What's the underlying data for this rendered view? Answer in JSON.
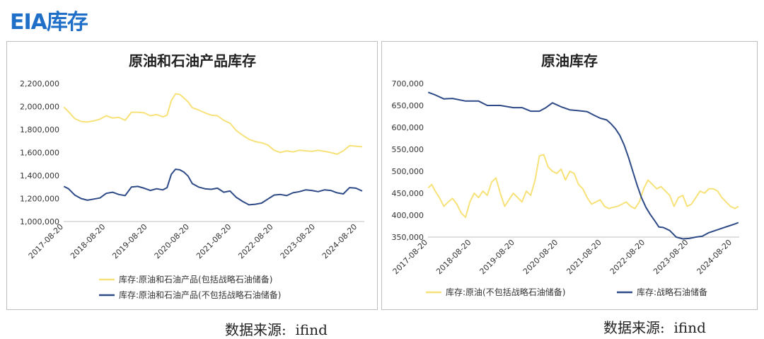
{
  "page": {
    "title": "EIA库存"
  },
  "source": {
    "left": "数据来源:  ifind",
    "right": "数据来源:  ifind"
  },
  "charts": [
    {
      "title": "原油和石油产品库存",
      "type": "line",
      "ylim": [
        1000000,
        2200000
      ],
      "yticks": [
        1000000,
        1200000,
        1400000,
        1600000,
        1800000,
        2000000,
        2200000
      ],
      "ytick_labels": [
        "1,000,000",
        "1,200,000",
        "1,400,000",
        "1,600,000",
        "1,800,000",
        "2,000,000",
        "2,200,000"
      ],
      "xlim": [
        2017.6356,
        2024.8
      ]
    },
    {
      "title": "原油库存",
      "type": "line",
      "ylim": [
        350000,
        700000
      ],
      "yticks": [
        350000,
        400000,
        450000,
        500000,
        550000,
        600000,
        650000,
        700000
      ],
      "ytick_labels": [
        "350,000",
        "400,000",
        "450,000",
        "500,000",
        "550,000",
        "600,000",
        "650,000",
        "700,000"
      ],
      "xlim": [
        2017.6356,
        2024.8
      ]
    }
  ],
  "chart_data": [
    {
      "type": "line",
      "title": "原油和石油产品库存",
      "xlabel": "",
      "ylabel": "",
      "x_tick_labels": [
        "2017-08-20",
        "2018-08-20",
        "2019-08-20",
        "2020-08-20",
        "2021-08-20",
        "2022-08-20",
        "2023-08-20",
        "2024-08-20"
      ],
      "x_tick_values": [
        2017.6356,
        2018.6356,
        2019.6356,
        2020.6356,
        2021.6356,
        2022.6356,
        2023.6356,
        2024.6356
      ],
      "ylim": [
        1000000,
        2200000
      ],
      "legend_position": "bottom",
      "series": [
        {
          "name": "库存:原油和石油产品(包括战略石油储备)",
          "color": "#f7e27a",
          "x": [
            2017.64,
            2017.75,
            2017.9,
            2018.05,
            2018.2,
            2018.35,
            2018.5,
            2018.65,
            2018.8,
            2018.95,
            2019.1,
            2019.25,
            2019.4,
            2019.55,
            2019.7,
            2019.85,
            2020.0,
            2020.1,
            2020.2,
            2020.3,
            2020.4,
            2020.5,
            2020.6,
            2020.7,
            2020.85,
            2021.0,
            2021.15,
            2021.3,
            2021.45,
            2021.6,
            2021.75,
            2021.9,
            2022.05,
            2022.2,
            2022.35,
            2022.5,
            2022.65,
            2022.8,
            2022.95,
            2023.1,
            2023.25,
            2023.4,
            2023.55,
            2023.7,
            2023.85,
            2024.0,
            2024.15,
            2024.3,
            2024.45,
            2024.6,
            2024.75
          ],
          "y": [
            1995000,
            1955000,
            1895000,
            1870000,
            1865000,
            1875000,
            1890000,
            1920000,
            1900000,
            1905000,
            1880000,
            1950000,
            1950000,
            1945000,
            1920000,
            1930000,
            1910000,
            1925000,
            2050000,
            2110000,
            2105000,
            2075000,
            2040000,
            1990000,
            1970000,
            1945000,
            1925000,
            1920000,
            1880000,
            1855000,
            1790000,
            1750000,
            1715000,
            1695000,
            1685000,
            1665000,
            1620000,
            1600000,
            1615000,
            1605000,
            1620000,
            1615000,
            1610000,
            1620000,
            1610000,
            1600000,
            1585000,
            1615000,
            1660000,
            1655000,
            1650000
          ]
        },
        {
          "name": "库存:原油和石油产品(不包括战略石油储备)",
          "color": "#2e4a87",
          "x": [
            2017.64,
            2017.75,
            2017.9,
            2018.05,
            2018.2,
            2018.35,
            2018.5,
            2018.65,
            2018.8,
            2018.95,
            2019.1,
            2019.25,
            2019.4,
            2019.55,
            2019.7,
            2019.85,
            2020.0,
            2020.1,
            2020.2,
            2020.3,
            2020.4,
            2020.5,
            2020.6,
            2020.7,
            2020.85,
            2021.0,
            2021.15,
            2021.3,
            2021.45,
            2021.6,
            2021.75,
            2021.9,
            2022.05,
            2022.2,
            2022.35,
            2022.5,
            2022.65,
            2022.8,
            2022.95,
            2023.1,
            2023.25,
            2023.4,
            2023.55,
            2023.7,
            2023.85,
            2024.0,
            2024.15,
            2024.3,
            2024.45,
            2024.6,
            2024.75
          ],
          "y": [
            1305000,
            1285000,
            1230000,
            1200000,
            1185000,
            1195000,
            1205000,
            1245000,
            1255000,
            1235000,
            1225000,
            1300000,
            1305000,
            1290000,
            1270000,
            1285000,
            1275000,
            1295000,
            1410000,
            1455000,
            1450000,
            1430000,
            1395000,
            1330000,
            1300000,
            1285000,
            1280000,
            1290000,
            1255000,
            1265000,
            1210000,
            1175000,
            1145000,
            1150000,
            1160000,
            1195000,
            1230000,
            1235000,
            1225000,
            1250000,
            1260000,
            1275000,
            1270000,
            1260000,
            1275000,
            1270000,
            1250000,
            1240000,
            1295000,
            1290000,
            1265000
          ]
        }
      ]
    },
    {
      "type": "line",
      "title": "原油库存",
      "xlabel": "",
      "ylabel": "",
      "x_tick_labels": [
        "2017-08-20",
        "2018-08-20",
        "2019-08-20",
        "2020-08-20",
        "2021-08-20",
        "2022-08-20",
        "2023-08-20",
        "2024-08-20"
      ],
      "x_tick_values": [
        2017.6356,
        2018.6356,
        2019.6356,
        2020.6356,
        2021.6356,
        2022.6356,
        2023.6356,
        2024.6356
      ],
      "ylim": [
        350000,
        700000
      ],
      "legend_position": "bottom",
      "series": [
        {
          "name": "库存:原油(不包括战略石油储备)",
          "color": "#f7e27a",
          "x": [
            2017.64,
            2017.72,
            2017.8,
            2017.9,
            2018.0,
            2018.1,
            2018.2,
            2018.3,
            2018.4,
            2018.5,
            2018.6,
            2018.7,
            2018.8,
            2018.9,
            2019.0,
            2019.1,
            2019.2,
            2019.3,
            2019.4,
            2019.5,
            2019.6,
            2019.7,
            2019.8,
            2019.9,
            2020.0,
            2020.1,
            2020.2,
            2020.3,
            2020.4,
            2020.5,
            2020.6,
            2020.7,
            2020.8,
            2020.9,
            2021.0,
            2021.1,
            2021.2,
            2021.3,
            2021.4,
            2021.5,
            2021.6,
            2021.7,
            2021.8,
            2021.9,
            2022.0,
            2022.1,
            2022.2,
            2022.3,
            2022.4,
            2022.5,
            2022.6,
            2022.7,
            2022.8,
            2022.9,
            2023.0,
            2023.1,
            2023.2,
            2023.3,
            2023.4,
            2023.5,
            2023.6,
            2023.7,
            2023.8,
            2023.9,
            2024.0,
            2024.1,
            2024.2,
            2024.3,
            2024.4,
            2024.5,
            2024.6,
            2024.7,
            2024.78
          ],
          "y": [
            462000,
            470000,
            455000,
            440000,
            420000,
            430000,
            438000,
            425000,
            405000,
            395000,
            430000,
            450000,
            440000,
            455000,
            445000,
            475000,
            485000,
            450000,
            420000,
            435000,
            450000,
            440000,
            430000,
            455000,
            445000,
            480000,
            535000,
            538000,
            510000,
            500000,
            495000,
            505000,
            480000,
            500000,
            495000,
            470000,
            460000,
            440000,
            425000,
            430000,
            435000,
            420000,
            415000,
            418000,
            420000,
            425000,
            430000,
            420000,
            415000,
            430000,
            460000,
            480000,
            470000,
            460000,
            465000,
            455000,
            445000,
            420000,
            440000,
            445000,
            420000,
            425000,
            440000,
            455000,
            450000,
            460000,
            460000,
            455000,
            440000,
            430000,
            420000,
            415000,
            420000
          ]
        },
        {
          "name": "库存:战略石油储备",
          "color": "#2e4a87",
          "x": [
            2017.64,
            2017.8,
            2018.0,
            2018.2,
            2018.5,
            2018.8,
            2019.0,
            2019.3,
            2019.6,
            2019.8,
            2020.0,
            2020.2,
            2020.35,
            2020.5,
            2020.7,
            2020.9,
            2021.1,
            2021.3,
            2021.45,
            2021.6,
            2021.75,
            2021.85,
            2021.95,
            2022.05,
            2022.15,
            2022.25,
            2022.35,
            2022.45,
            2022.55,
            2022.65,
            2022.75,
            2022.85,
            2022.95,
            2023.05,
            2023.2,
            2023.35,
            2023.5,
            2023.65,
            2023.8,
            2023.95,
            2024.1,
            2024.25,
            2024.4,
            2024.55,
            2024.7,
            2024.78
          ],
          "y": [
            680000,
            674000,
            665000,
            666000,
            660000,
            660000,
            650000,
            650000,
            645000,
            645000,
            637000,
            637000,
            645000,
            656000,
            647000,
            640000,
            638000,
            636000,
            628000,
            621000,
            617000,
            608000,
            597000,
            582000,
            560000,
            532000,
            500000,
            468000,
            440000,
            418000,
            402000,
            388000,
            373000,
            372000,
            365000,
            350000,
            346000,
            347000,
            350000,
            352000,
            360000,
            365000,
            370000,
            375000,
            380000,
            383000
          ]
        }
      ]
    }
  ]
}
